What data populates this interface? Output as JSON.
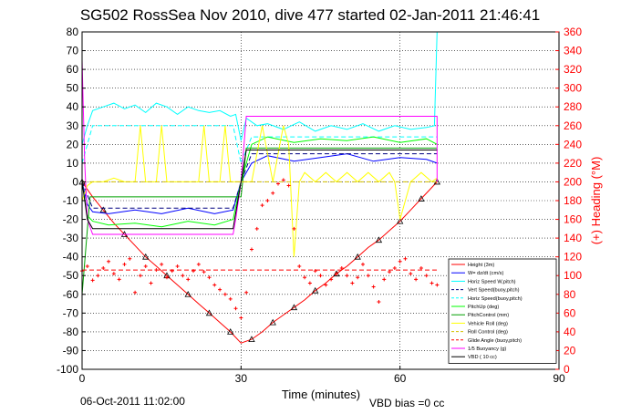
{
  "colors": {
    "height": "#ff0000",
    "w": "#0000ff",
    "horz_speed": "#00ffff",
    "vert_speed_buoy": "#000080",
    "horz_speed_buoy": "#00ffff",
    "pitch_up": "#00ff00",
    "pitch_control": "#00a000",
    "vehicle_roll": "#ffff00",
    "roll_control": "#d4c000",
    "glide_angle": "#ff0000",
    "buoyancy": "#ff00ff",
    "vbd": "#000000",
    "heading": "#ff0000",
    "grid": "#000000"
  },
  "chart_data": {
    "type": "line",
    "title": "SG502 RossSea Nov 2010, dive 477 started 02-Jan-2011 21:46:41",
    "xlabel": "Time (minutes)",
    "ylabel_right": "(+) Heading (°M)",
    "footer_date": "06-Oct-2011 11:02:00",
    "footer_note": "VBD bias =0 cc",
    "xlim": [
      0,
      90
    ],
    "ylim": [
      -100,
      80
    ],
    "ylim_right": [
      0,
      360
    ],
    "x_ticks": [
      0,
      30,
      60,
      90
    ],
    "x_tick_labels": [
      "0",
      "30",
      "60",
      "90"
    ],
    "y_ticks": [
      80,
      70,
      60,
      50,
      40,
      30,
      20,
      10,
      0,
      -10,
      -20,
      -30,
      -40,
      -50,
      -60,
      -70,
      -80,
      -90,
      -100
    ],
    "y_tick_labels": [
      "80",
      "70",
      "60",
      "50",
      "40",
      "30",
      "20",
      "10",
      "0",
      "-10",
      "-20",
      "-30",
      "-40",
      "-50",
      "-60",
      "-70",
      "-80",
      "-90",
      "-100"
    ],
    "y_right_ticks": [
      360,
      340,
      320,
      300,
      280,
      260,
      240,
      220,
      200,
      180,
      160,
      140,
      120,
      100,
      80,
      60,
      40,
      20,
      0
    ],
    "y_right_tick_labels": [
      "360",
      "340",
      "320",
      "300",
      "280",
      "260",
      "240",
      "220",
      "200",
      "180",
      "160",
      "140",
      "120",
      "100",
      "80",
      "60",
      "40",
      "20",
      "0"
    ],
    "grid": true,
    "legend_position": "bottom-right",
    "series": [
      {
        "key": "height",
        "name": "Height (3m)",
        "style": "solid-triangles",
        "color_key": "height",
        "x": [
          0,
          2,
          4,
          6,
          8,
          10,
          12,
          14,
          16,
          18,
          20,
          22,
          24,
          26,
          28,
          30,
          32,
          34,
          36,
          38,
          40,
          42,
          44,
          46,
          48,
          50,
          52,
          54,
          56,
          58,
          60,
          62,
          64,
          66,
          67
        ],
        "y": [
          0,
          -8,
          -15,
          -22,
          -28,
          -34,
          -40,
          -45,
          -50,
          -55,
          -60,
          -65,
          -70,
          -75,
          -80,
          -86,
          -84,
          -80,
          -75,
          -71,
          -67,
          -63,
          -58,
          -54,
          -49,
          -45,
          -40,
          -35,
          -31,
          -26,
          -21,
          -15,
          -9,
          -3,
          0
        ]
      },
      {
        "key": "w",
        "name": "W= dz/dt (cm/s)",
        "style": "solid",
        "color_key": "w",
        "x": [
          0,
          1,
          2,
          5,
          10,
          15,
          20,
          25,
          28.5,
          30,
          32,
          35,
          40,
          45,
          50,
          55,
          60,
          65,
          67
        ],
        "y": [
          0,
          -12,
          -16,
          -17,
          -15,
          -17,
          -14,
          -17,
          -15,
          0,
          10,
          14,
          11,
          13,
          15,
          11,
          13,
          12,
          10
        ]
      },
      {
        "key": "horz_speed",
        "name": "Horiz Speed W,pitch)",
        "style": "solid",
        "color_key": "horz_speed",
        "x": [
          0,
          1,
          2,
          4,
          6,
          8,
          10,
          12,
          14,
          16,
          18,
          20,
          22,
          24,
          26,
          28,
          29,
          30,
          31,
          33,
          35,
          38,
          41,
          44,
          47,
          50,
          53,
          56,
          59,
          62,
          65,
          66.5,
          67
        ],
        "y": [
          20,
          30,
          38,
          40,
          42,
          39,
          41,
          37,
          42,
          40,
          36,
          40,
          38,
          37,
          38,
          35,
          36,
          22,
          34,
          30,
          31,
          28,
          32,
          27,
          30,
          28,
          31,
          27,
          30,
          28,
          29,
          30,
          80
        ]
      },
      {
        "key": "vert_speed_buoy",
        "name": "Vert Speed(buoy,pitch)",
        "style": "dashed",
        "color_key": "vert_speed_buoy",
        "x": [
          0,
          2,
          28.5,
          30,
          32,
          67
        ],
        "y": [
          0,
          -14,
          -14,
          0,
          15,
          15
        ]
      },
      {
        "key": "horz_speed_buoy",
        "name": "Horiz Speed(buoy,pitch)",
        "style": "dashed",
        "color_key": "horz_speed_buoy",
        "x": [
          0,
          2,
          28.5,
          30,
          32,
          67
        ],
        "y": [
          10,
          30,
          30,
          10,
          24,
          24
        ]
      },
      {
        "key": "pitch_up",
        "name": "PitchUp (deg)",
        "style": "solid",
        "color_key": "pitch_up",
        "x": [
          0,
          1,
          2,
          5,
          10,
          15,
          20,
          25,
          28.5,
          30,
          32,
          35,
          40,
          45,
          50,
          55,
          60,
          65,
          67
        ],
        "y": [
          0,
          -18,
          -21,
          -23,
          -22,
          -24,
          -21,
          -23,
          -20,
          0,
          20,
          24,
          21,
          23,
          22,
          24,
          21,
          23,
          20
        ]
      },
      {
        "key": "pitch_control",
        "name": "PitchControl (mm)",
        "style": "solid",
        "color_key": "pitch_control",
        "x": [
          0,
          1.5,
          28.5,
          30,
          31,
          67
        ],
        "y": [
          -60,
          -8,
          -8,
          -8,
          18,
          18
        ]
      },
      {
        "key": "vehicle_roll",
        "name": "Vehicle Roll (deg)",
        "style": "solid",
        "color_key": "vehicle_roll",
        "x": [
          0,
          1,
          2,
          4,
          6,
          8,
          10,
          11,
          12,
          14,
          15,
          16,
          18,
          20,
          22,
          23,
          24,
          26,
          27,
          28,
          29,
          30,
          32,
          34,
          36,
          38,
          39,
          40,
          41,
          42,
          44,
          46,
          48,
          50,
          52,
          54,
          56,
          58,
          59,
          60,
          62,
          64,
          66,
          67
        ],
        "y": [
          -10,
          -2,
          0,
          0,
          2,
          0,
          0,
          30,
          0,
          0,
          30,
          0,
          0,
          0,
          0,
          30,
          0,
          0,
          30,
          0,
          0,
          0,
          0,
          30,
          0,
          30,
          20,
          -40,
          0,
          5,
          0,
          5,
          0,
          5,
          0,
          5,
          0,
          5,
          0,
          -20,
          0,
          5,
          0,
          2
        ]
      },
      {
        "key": "roll_control",
        "name": "Roll Control (deg)",
        "style": "dashed",
        "color_key": "roll_control",
        "x": [
          0,
          67
        ],
        "y": [
          0,
          0
        ]
      },
      {
        "key": "glide_angle",
        "name": "Glide Angle (buoy,pitch)",
        "style": "dashed",
        "color_key": "glide_angle",
        "x": [
          0,
          67
        ],
        "y": [
          -47,
          -47
        ]
      },
      {
        "key": "buoyancy",
        "name": "1/5 Buoyancy (g)",
        "style": "solid",
        "color_key": "buoyancy",
        "x": [
          0,
          0.5,
          1,
          2,
          28.5,
          29,
          30,
          31,
          67,
          67
        ],
        "y": [
          65,
          10,
          -20,
          -28,
          -28,
          -20,
          0,
          35,
          35,
          0
        ]
      },
      {
        "key": "vbd",
        "name": "VBD ( 10 cc)",
        "style": "solid",
        "color_key": "vbd",
        "x": [
          0,
          1,
          2,
          28.5,
          30,
          31,
          67
        ],
        "y": [
          0,
          -20,
          -25,
          -25,
          0,
          17,
          17
        ]
      }
    ],
    "heading_series": {
      "key": "heading",
      "name": "Heading",
      "axis": "right",
      "style": "markers",
      "color_key": "heading",
      "x": [
        0,
        1,
        2,
        3,
        4,
        5,
        6,
        7,
        8,
        9,
        10,
        11,
        12,
        13,
        14,
        15,
        16,
        17,
        18,
        19,
        20,
        21,
        22,
        23,
        24,
        25,
        26,
        27,
        28,
        29,
        30,
        31,
        32,
        33,
        34,
        35,
        36,
        37,
        38,
        39,
        40,
        41,
        42,
        43,
        44,
        45,
        46,
        47,
        48,
        49,
        50,
        51,
        52,
        53,
        54,
        55,
        56,
        57,
        58,
        59,
        60,
        61,
        62,
        63,
        64,
        65,
        66,
        67
      ],
      "y": [
        105,
        110,
        95,
        100,
        108,
        115,
        102,
        96,
        112,
        118,
        82,
        100,
        110,
        92,
        106,
        112,
        98,
        105,
        110,
        100,
        96,
        105,
        112,
        104,
        98,
        90,
        85,
        80,
        75,
        65,
        55,
        82,
        128,
        150,
        175,
        180,
        188,
        198,
        202,
        196,
        150,
        110,
        98,
        92,
        105,
        100,
        90,
        96,
        102,
        108,
        100,
        92,
        98,
        112,
        100,
        88,
        72,
        96,
        104,
        108,
        115,
        118,
        102,
        96,
        108,
        100,
        92,
        90
      ]
    }
  }
}
